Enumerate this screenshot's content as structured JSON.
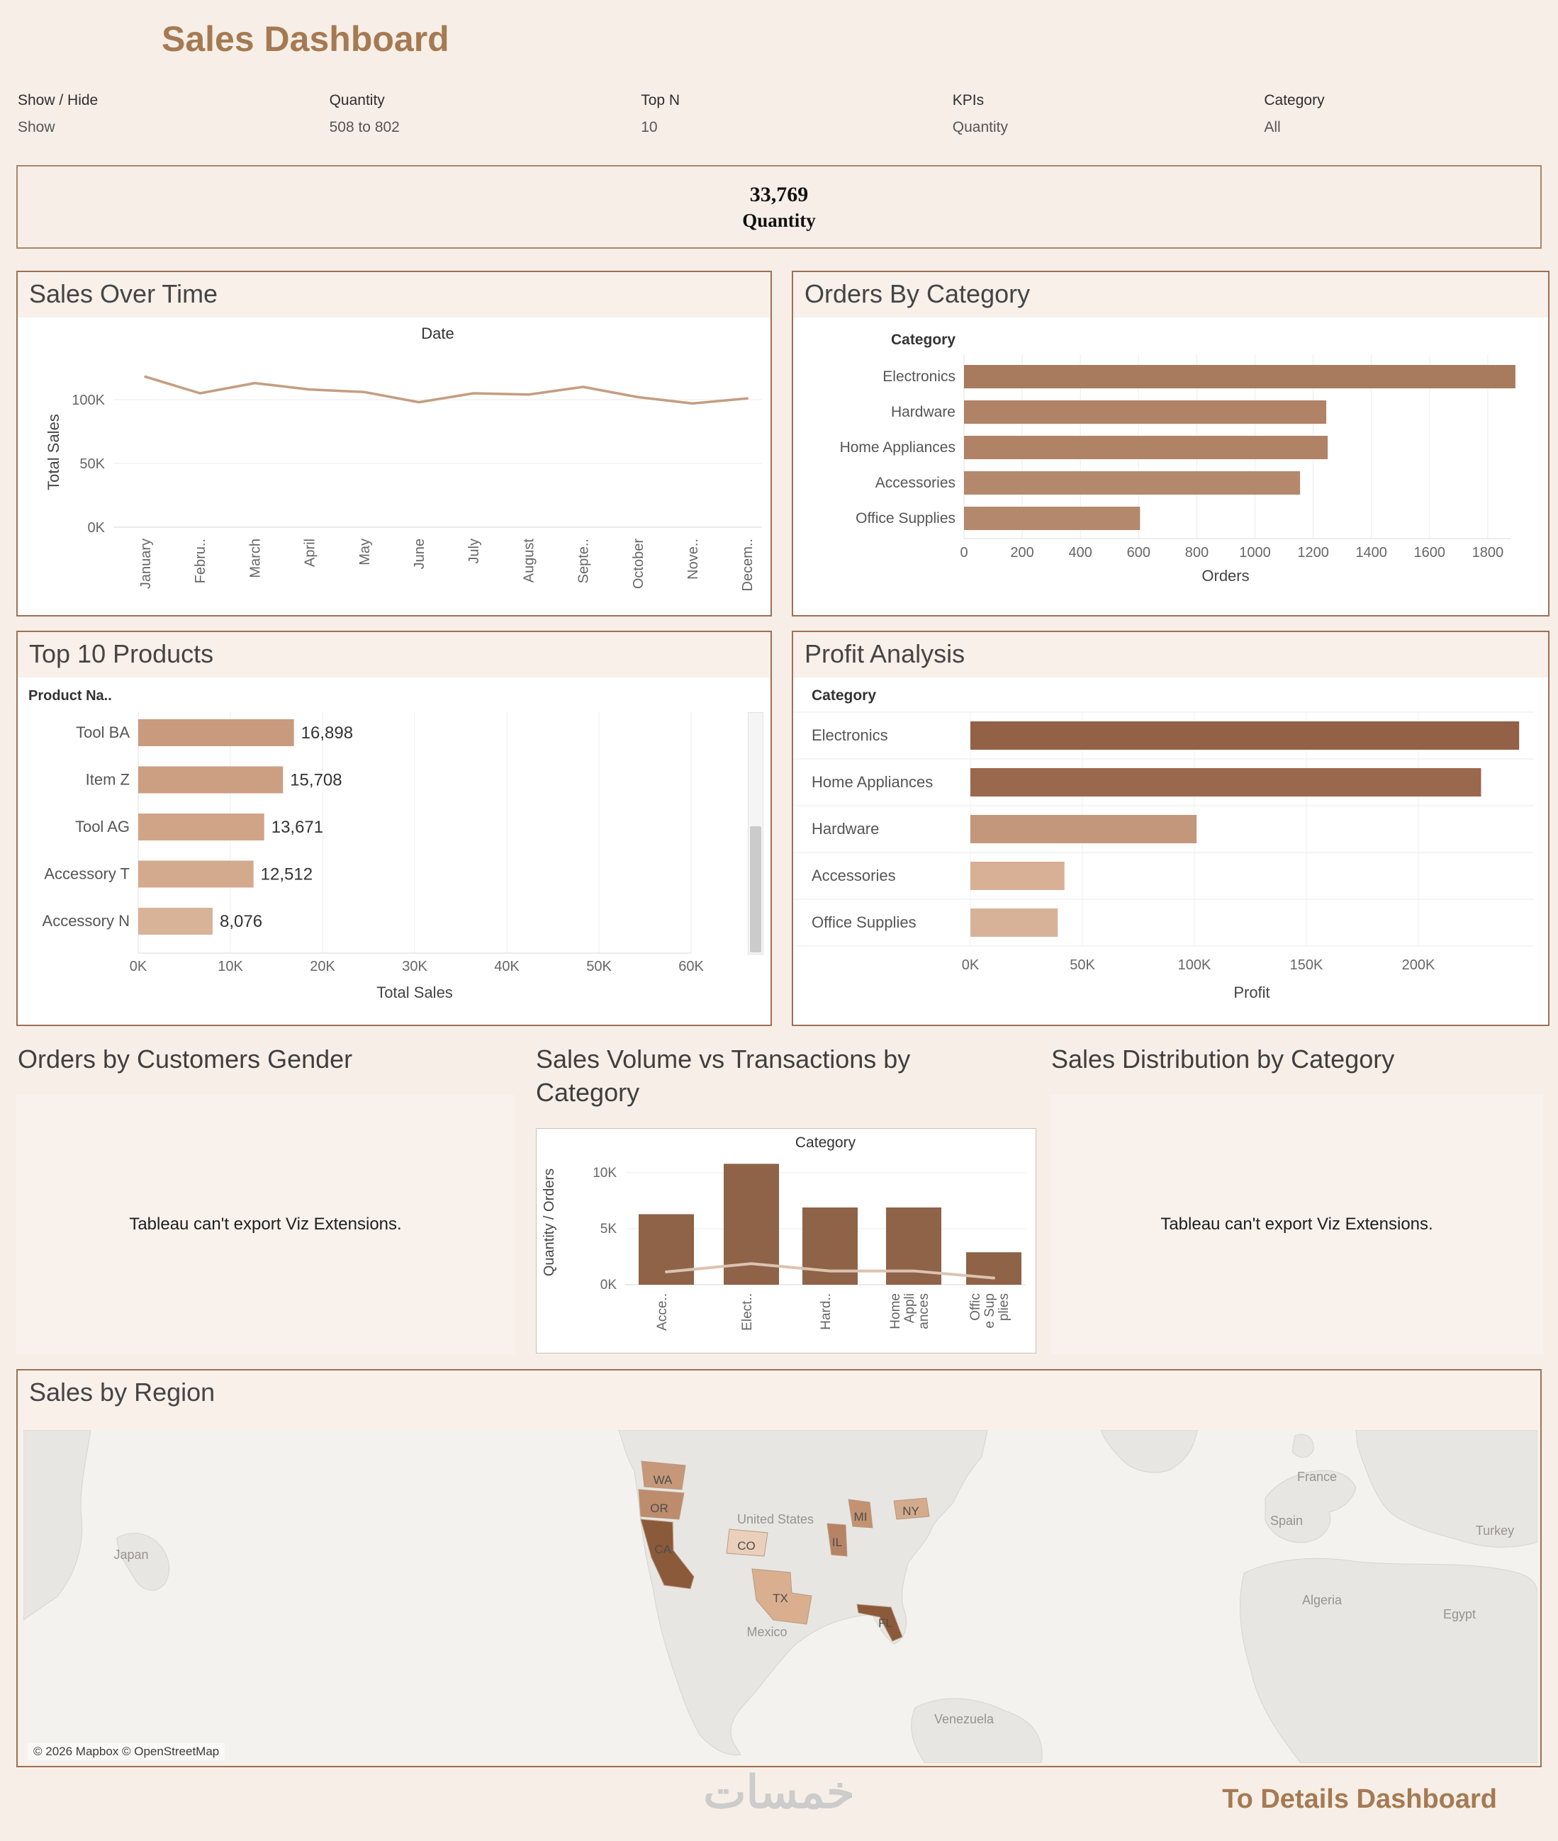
{
  "header": {
    "title": "Sales Dashboard"
  },
  "filters": [
    {
      "label": "Show / Hide",
      "value": "Show"
    },
    {
      "label": "Quantity",
      "value": "508 to 802"
    },
    {
      "label": "Top N",
      "value": "10"
    },
    {
      "label": "KPIs",
      "value": "Quantity"
    },
    {
      "label": "Category",
      "value": "All"
    }
  ],
  "kpi": {
    "value": "33,769",
    "label": "Quantity"
  },
  "sections": {
    "sales_over_time_title": "Sales Over Time",
    "orders_by_category_title": "Orders By Category",
    "top_products_title": "Top 10 Products",
    "profit_analysis_title": "Profit Analysis",
    "gender_title": "Orders by Customers Gender",
    "volume_title": "Sales Volume vs Transactions by Category",
    "distribution_title": "Sales Distribution by Category",
    "region_title": "Sales by Region"
  },
  "notes": {
    "viz_extension": "Tableau can't export Viz Extensions."
  },
  "footer": {
    "watermark": "خمسات",
    "details_link": "To Details Dashboard"
  },
  "map_meta": {
    "attribution": "© 2026 Mapbox © OpenStreetMap"
  },
  "colors": {
    "accent_brown": "#a57a53",
    "panel_border": "#9b7156",
    "page_bg": "#f7efe7"
  },
  "chart_data": [
    {
      "id": "sales_over_time",
      "type": "line",
      "title": "Date",
      "x": [
        "January",
        "February",
        "March",
        "April",
        "May",
        "June",
        "July",
        "August",
        "September",
        "October",
        "November",
        "December"
      ],
      "x_tick_labels": [
        "January",
        "Febru..",
        "March",
        "April",
        "May",
        "June",
        "July",
        "August",
        "Septe..",
        "October",
        "Nove..",
        "Decem.."
      ],
      "values": [
        118000,
        105000,
        113000,
        108000,
        106000,
        98000,
        105000,
        104000,
        110000,
        102000,
        97000,
        101000
      ],
      "ylabel": "Total Sales",
      "yticks": [
        "0K",
        "50K",
        "100K"
      ],
      "ylim": [
        0,
        130000
      ],
      "line_color": "#c49d81",
      "grid": true
    },
    {
      "id": "orders_by_category",
      "type": "bar",
      "orientation": "horizontal",
      "column_header": "Category",
      "categories": [
        "Electronics",
        "Hardware",
        "Home Appliances",
        "Accessories",
        "Office Supplies"
      ],
      "values": [
        1895,
        1245,
        1250,
        1155,
        605
      ],
      "xlabel": "Orders",
      "xticks": [
        0,
        200,
        400,
        600,
        800,
        1000,
        1200,
        1400,
        1600,
        1800
      ],
      "xlim": [
        0,
        2000
      ],
      "bar_colors": [
        "#a87a5e",
        "#b08266",
        "#b08266",
        "#b4886c",
        "#b4886c"
      ]
    },
    {
      "id": "top_products",
      "type": "bar",
      "orientation": "horizontal",
      "column_header": "Product Na..",
      "categories": [
        "Tool BA",
        "Item Z",
        "Tool AG",
        "Accessory T",
        "Accessory N"
      ],
      "values": [
        16898,
        15708,
        13671,
        12512,
        8076
      ],
      "value_labels": [
        "16,898",
        "15,708",
        "13,671",
        "12,512",
        "8,076"
      ],
      "xlabel": "Total Sales",
      "xticks": [
        "0K",
        "10K",
        "20K",
        "30K",
        "40K",
        "50K",
        "60K"
      ],
      "xlim": [
        0,
        66000
      ],
      "bar_colors": [
        "#c99a7e",
        "#cc9e82",
        "#d0a487",
        "#d4aa8e",
        "#d9b398"
      ],
      "scrollbar": true
    },
    {
      "id": "profit_analysis",
      "type": "bar",
      "orientation": "horizontal",
      "column_header": "Category",
      "categories": [
        "Electronics",
        "Home Appliances",
        "Hardware",
        "Accessories",
        "Office Supplies"
      ],
      "values": [
        245000,
        228000,
        101000,
        42000,
        39000
      ],
      "xlabel": "Profit",
      "xticks": [
        "0K",
        "50K",
        "100K",
        "150K",
        "200K"
      ],
      "xlim": [
        0,
        250000
      ],
      "bar_colors": [
        "#936146",
        "#9a684c",
        "#c3977c",
        "#d7b096",
        "#d8b298"
      ]
    },
    {
      "id": "volume_vs_transactions",
      "type": "bar",
      "title": "Category",
      "categories": [
        "Accessories",
        "Electronics",
        "Hardware",
        "Home Appliances",
        "Office Supplies"
      ],
      "x_tick_labels": [
        [
          "Acce.."
        ],
        [
          "Elect.."
        ],
        [
          "Hard.."
        ],
        [
          "Home",
          "Appli",
          "ances"
        ],
        [
          "Offic",
          "e Sup",
          "plies"
        ]
      ],
      "series": [
        {
          "name": "Quantity",
          "type": "bar",
          "values": [
            6300,
            10800,
            6900,
            6900,
            2900
          ],
          "color": "#8e6347"
        },
        {
          "name": "Orders",
          "type": "line",
          "values": [
            1150,
            1880,
            1230,
            1230,
            600
          ],
          "color": "#dcc3b0"
        }
      ],
      "ylabel": "Quantity / Orders",
      "yticks": [
        "0K",
        "5K",
        "10K"
      ],
      "ylim": [
        0,
        11200
      ]
    },
    {
      "id": "sales_by_region",
      "type": "map",
      "states": [
        {
          "code": "WA",
          "color": "#c69879"
        },
        {
          "code": "OR",
          "color": "#bd8c6d"
        },
        {
          "code": "CA",
          "color": "#8a5a3a"
        },
        {
          "code": "CO",
          "color": "#ead0ba"
        },
        {
          "code": "TX",
          "color": "#d9af90"
        },
        {
          "code": "MI",
          "color": "#c39270"
        },
        {
          "code": "IL",
          "color": "#b78365"
        },
        {
          "code": "NY",
          "color": "#d4ab8d"
        },
        {
          "code": "FL",
          "color": "#8a5a3a"
        }
      ],
      "country_labels": [
        "Japan",
        "United States",
        "Mexico",
        "Venezuela",
        "France",
        "Spain",
        "Algeria",
        "Egypt",
        "Turkey"
      ]
    }
  ]
}
